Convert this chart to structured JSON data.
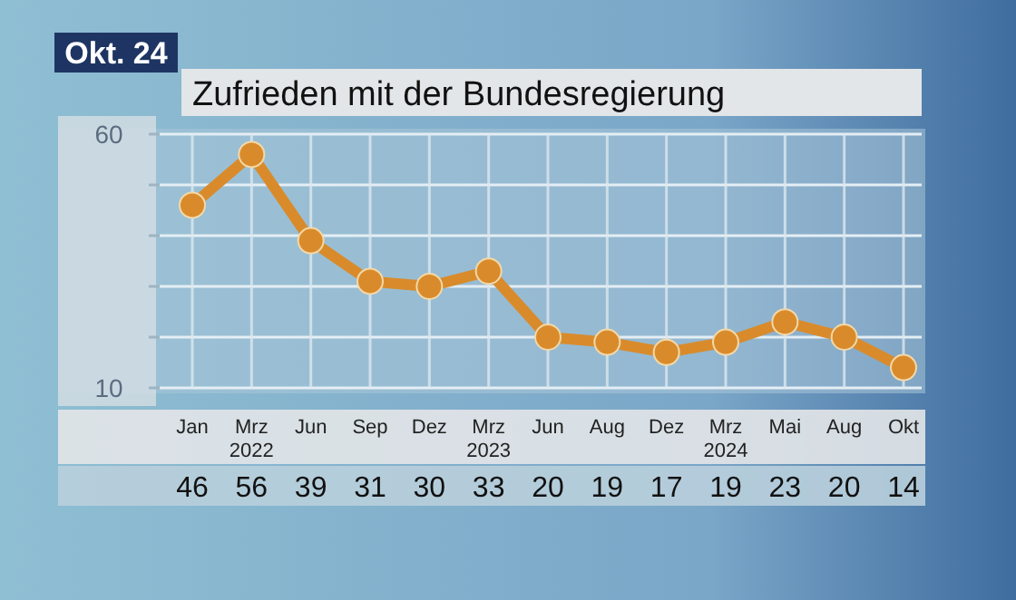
{
  "chart_data": {
    "type": "line",
    "title": "Zufrieden mit der Bundesregierung",
    "subtitle": "Okt. 24",
    "categories": [
      "Jan",
      "Mrz\n2022",
      "Jun",
      "Sep",
      "Dez",
      "Mrz\n2023",
      "Jun",
      "Aug",
      "Dez",
      "Mrz\n2024",
      "Mai",
      "Aug",
      "Okt"
    ],
    "series": [
      {
        "color": "#d98b2b",
        "values": [
          46,
          56,
          39,
          31,
          30,
          33,
          20,
          19,
          17,
          19,
          23,
          20,
          14
        ]
      }
    ],
    "ylim": [
      10,
      60
    ],
    "yticks": [
      {
        "value": 10,
        "label": "10"
      },
      {
        "value": 20,
        "label": null
      },
      {
        "value": 30,
        "label": null
      },
      {
        "value": 40,
        "label": null
      },
      {
        "value": 50,
        "label": null
      },
      {
        "value": 60,
        "label": "60"
      }
    ],
    "grid": true,
    "marker": "circle",
    "line_style": "solid",
    "data_labels": true
  }
}
